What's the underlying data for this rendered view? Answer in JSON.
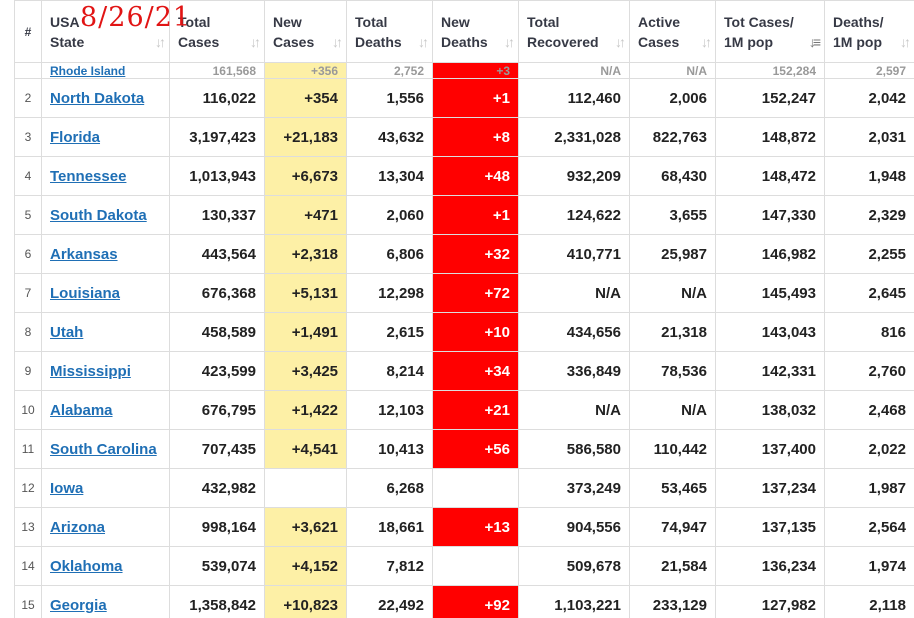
{
  "annotation": "8/26/21",
  "headers": {
    "rank": "#",
    "state_l1": "USA",
    "state_l2": "State",
    "total_cases_l1": "Total",
    "total_cases_l2": "Cases",
    "new_cases_l1": "New",
    "new_cases_l2": "Cases",
    "total_deaths_l1": "Total",
    "total_deaths_l2": "Deaths",
    "new_deaths_l1": "New",
    "new_deaths_l2": "Deaths",
    "total_recovered_l1": "Total",
    "total_recovered_l2": "Recovered",
    "active_cases_l1": "Active",
    "active_cases_l2": "Cases",
    "tot_cases_1m_l1": "Tot Cases/",
    "tot_cases_1m_l2": "1M pop",
    "deaths_1m_l1": "Deaths/",
    "deaths_1m_l2": "1M pop"
  },
  "cut_row": {
    "state": "Rhode Island",
    "total_cases": "161,568",
    "new_cases": "+356",
    "total_deaths": "2,752",
    "new_deaths": "+3",
    "total_recovered": "N/A",
    "active_cases": "N/A",
    "tot_cases_1m": "152,284",
    "deaths_1m": "2,597"
  },
  "rows": [
    {
      "rank": "2",
      "state": "North Dakota",
      "total_cases": "116,022",
      "new_cases": "+354",
      "total_deaths": "1,556",
      "new_deaths": "+1",
      "total_recovered": "112,460",
      "active_cases": "2,006",
      "tot_cases_1m": "152,247",
      "deaths_1m": "2,042"
    },
    {
      "rank": "3",
      "state": "Florida",
      "total_cases": "3,197,423",
      "new_cases": "+21,183",
      "total_deaths": "43,632",
      "new_deaths": "+8",
      "total_recovered": "2,331,028",
      "active_cases": "822,763",
      "tot_cases_1m": "148,872",
      "deaths_1m": "2,031"
    },
    {
      "rank": "4",
      "state": "Tennessee",
      "total_cases": "1,013,943",
      "new_cases": "+6,673",
      "total_deaths": "13,304",
      "new_deaths": "+48",
      "total_recovered": "932,209",
      "active_cases": "68,430",
      "tot_cases_1m": "148,472",
      "deaths_1m": "1,948"
    },
    {
      "rank": "5",
      "state": "South Dakota",
      "total_cases": "130,337",
      "new_cases": "+471",
      "total_deaths": "2,060",
      "new_deaths": "+1",
      "total_recovered": "124,622",
      "active_cases": "3,655",
      "tot_cases_1m": "147,330",
      "deaths_1m": "2,329"
    },
    {
      "rank": "6",
      "state": "Arkansas",
      "total_cases": "443,564",
      "new_cases": "+2,318",
      "total_deaths": "6,806",
      "new_deaths": "+32",
      "total_recovered": "410,771",
      "active_cases": "25,987",
      "tot_cases_1m": "146,982",
      "deaths_1m": "2,255"
    },
    {
      "rank": "7",
      "state": "Louisiana",
      "total_cases": "676,368",
      "new_cases": "+5,131",
      "total_deaths": "12,298",
      "new_deaths": "+72",
      "total_recovered": "N/A",
      "active_cases": "N/A",
      "tot_cases_1m": "145,493",
      "deaths_1m": "2,645"
    },
    {
      "rank": "8",
      "state": "Utah",
      "total_cases": "458,589",
      "new_cases": "+1,491",
      "total_deaths": "2,615",
      "new_deaths": "+10",
      "total_recovered": "434,656",
      "active_cases": "21,318",
      "tot_cases_1m": "143,043",
      "deaths_1m": "816"
    },
    {
      "rank": "9",
      "state": "Mississippi",
      "total_cases": "423,599",
      "new_cases": "+3,425",
      "total_deaths": "8,214",
      "new_deaths": "+34",
      "total_recovered": "336,849",
      "active_cases": "78,536",
      "tot_cases_1m": "142,331",
      "deaths_1m": "2,760"
    },
    {
      "rank": "10",
      "state": "Alabama",
      "total_cases": "676,795",
      "new_cases": "+1,422",
      "total_deaths": "12,103",
      "new_deaths": "+21",
      "total_recovered": "N/A",
      "active_cases": "N/A",
      "tot_cases_1m": "138,032",
      "deaths_1m": "2,468"
    },
    {
      "rank": "11",
      "state": "South Carolina",
      "total_cases": "707,435",
      "new_cases": "+4,541",
      "total_deaths": "10,413",
      "new_deaths": "+56",
      "total_recovered": "586,580",
      "active_cases": "110,442",
      "tot_cases_1m": "137,400",
      "deaths_1m": "2,022"
    },
    {
      "rank": "12",
      "state": "Iowa",
      "total_cases": "432,982",
      "new_cases": "",
      "total_deaths": "6,268",
      "new_deaths": "",
      "total_recovered": "373,249",
      "active_cases": "53,465",
      "tot_cases_1m": "137,234",
      "deaths_1m": "1,987"
    },
    {
      "rank": "13",
      "state": "Arizona",
      "total_cases": "998,164",
      "new_cases": "+3,621",
      "total_deaths": "18,661",
      "new_deaths": "+13",
      "total_recovered": "904,556",
      "active_cases": "74,947",
      "tot_cases_1m": "137,135",
      "deaths_1m": "2,564"
    },
    {
      "rank": "14",
      "state": "Oklahoma",
      "total_cases": "539,074",
      "new_cases": "+4,152",
      "total_deaths": "7,812",
      "new_deaths": "",
      "total_recovered": "509,678",
      "active_cases": "21,584",
      "tot_cases_1m": "136,234",
      "deaths_1m": "1,974"
    },
    {
      "rank": "15",
      "state": "Georgia",
      "total_cases": "1,358,842",
      "new_cases": "+10,823",
      "total_deaths": "22,492",
      "new_deaths": "+92",
      "total_recovered": "1,103,221",
      "active_cases": "233,129",
      "tot_cases_1m": "127,982",
      "deaths_1m": "2,118"
    }
  ]
}
